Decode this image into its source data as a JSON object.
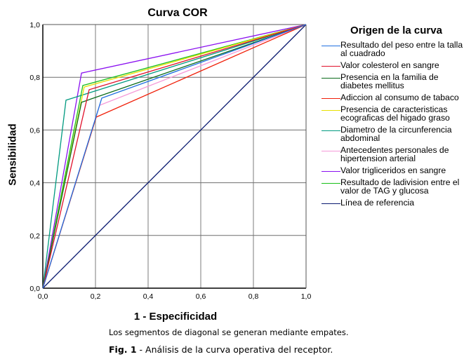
{
  "chart_data": {
    "type": "line",
    "title": "Curva COR",
    "xlabel": "1 - Especificidad",
    "ylabel": "Sensibilidad",
    "xlim": [
      0,
      1
    ],
    "ylim": [
      0,
      1
    ],
    "grid": true,
    "x_ticks": [
      "0,0",
      "0,2",
      "0,4",
      "0,6",
      "0,8",
      "1,0"
    ],
    "y_ticks": [
      "0,0",
      "0,2",
      "0,4",
      "0,6",
      "0,8",
      "1,0"
    ],
    "x_tick_values": [
      0,
      0.2,
      0.4,
      0.6,
      0.8,
      1.0
    ],
    "y_tick_values": [
      0,
      0.2,
      0.4,
      0.6,
      0.8,
      1.0
    ],
    "legend_title": "Origen de la curva",
    "legend_position": "right",
    "series": [
      {
        "name": "Resultado del peso entre la talla al cuadrado",
        "color": "#1f6fe0",
        "x": [
          0,
          0.224,
          1
        ],
        "y": [
          0,
          0.721,
          1
        ]
      },
      {
        "name": "Valor colesterol en sangre",
        "color": "#e0102a",
        "x": [
          0,
          0.176,
          1
        ],
        "y": [
          0,
          0.753,
          1
        ]
      },
      {
        "name": "Presencia en la familia de diabetes mellitus",
        "color": "#0a6b1a",
        "x": [
          0,
          0.147,
          1
        ],
        "y": [
          0,
          0.705,
          1
        ]
      },
      {
        "name": "Adiccion al consumo de tabaco",
        "color": "#f0200a",
        "x": [
          0,
          0.203,
          1
        ],
        "y": [
          0,
          0.649,
          1
        ]
      },
      {
        "name": "Presencia de caracteristicas ecograficas del higado graso",
        "color": "#e8e000",
        "x": [
          0,
          0.157,
          1
        ],
        "y": [
          0,
          0.763,
          1
        ]
      },
      {
        "name": "Diametro de la circunferencia abdominal",
        "color": "#009a80",
        "x": [
          0,
          0.088,
          1
        ],
        "y": [
          0,
          0.713,
          1
        ]
      },
      {
        "name": "Antecedentes personales de hipertension arterial",
        "color": "#f59ad8",
        "x": [
          0,
          0.216,
          1
        ],
        "y": [
          0,
          0.694,
          1
        ]
      },
      {
        "name": "Valor trigliceridos en sangre",
        "color": "#8a10f0",
        "x": [
          0,
          0.147,
          1
        ],
        "y": [
          0,
          0.816,
          1
        ]
      },
      {
        "name": "Resultado de ladivision entre el valor de TAG y glucosa",
        "color": "#18c018",
        "x": [
          0,
          0.152,
          1
        ],
        "y": [
          0,
          0.769,
          1
        ]
      },
      {
        "name": "Línea de referencia",
        "color": "#0a1a70",
        "x": [
          0,
          1
        ],
        "y": [
          0,
          1
        ]
      }
    ],
    "annotations": [
      "Los segmentos de diagonal se generan mediante empates."
    ]
  },
  "caption": {
    "label": "Fig. 1",
    "text": " - Análisis de la curva operativa del receptor."
  }
}
